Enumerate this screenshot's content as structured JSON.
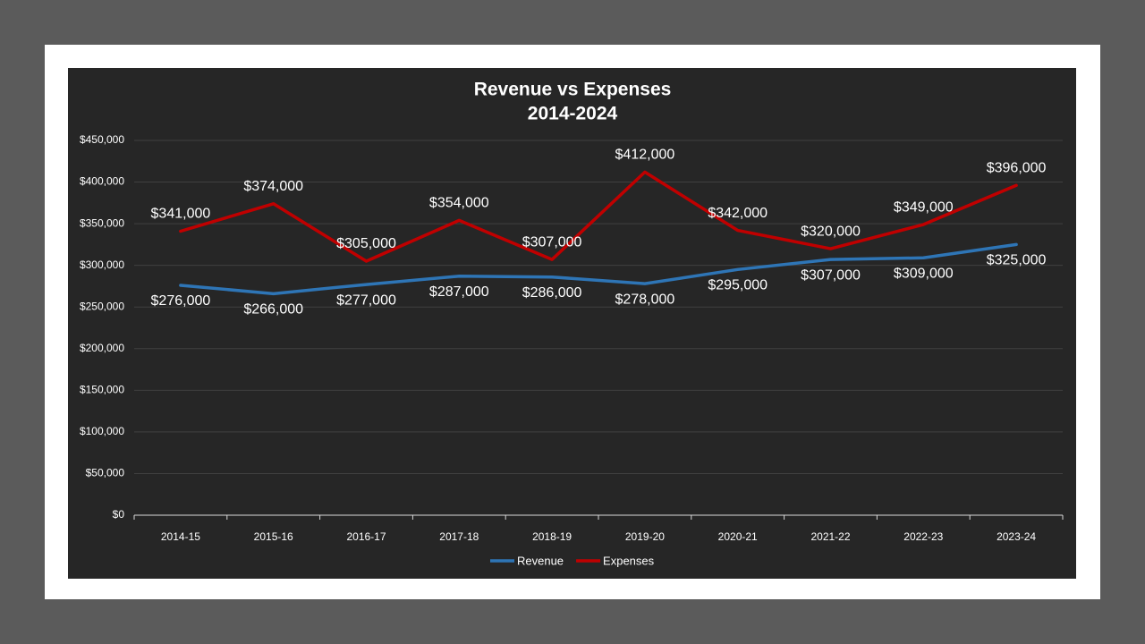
{
  "chart_data": {
    "type": "line",
    "title": "Revenue vs Expenses",
    "subtitle": "2014-2024",
    "categories": [
      "2014-15",
      "2015-16",
      "2016-17",
      "2017-18",
      "2018-19",
      "2019-20",
      "2020-21",
      "2021-22",
      "2022-23",
      "2023-24"
    ],
    "series": [
      {
        "name": "Revenue",
        "color": "#2e75b6",
        "values": [
          276000,
          266000,
          277000,
          287000,
          286000,
          278000,
          295000,
          307000,
          309000,
          325000
        ],
        "value_labels": [
          "$276,000",
          "$266,000",
          "$277,000",
          "$287,000",
          "$286,000",
          "$278,000",
          "$295,000",
          "$307,000",
          "$309,000",
          "$325,000"
        ]
      },
      {
        "name": "Expenses",
        "color": "#c00000",
        "values": [
          341000,
          374000,
          305000,
          354000,
          307000,
          412000,
          342000,
          320000,
          349000,
          396000
        ],
        "value_labels": [
          "$341,000",
          "$374,000",
          "$305,000",
          "$354,000",
          "$307,000",
          "$412,000",
          "$342,000",
          "$320,000",
          "$349,000",
          "$396,000"
        ]
      }
    ],
    "ylim": [
      0,
      450000
    ],
    "yticks": [
      {
        "value": 0,
        "label": "$0"
      },
      {
        "value": 50000,
        "label": "$50,000"
      },
      {
        "value": 100000,
        "label": "$100,000"
      },
      {
        "value": 150000,
        "label": "$150,000"
      },
      {
        "value": 200000,
        "label": "$200,000"
      },
      {
        "value": 250000,
        "label": "$250,000"
      },
      {
        "value": 300000,
        "label": "$300,000"
      },
      {
        "value": 350000,
        "label": "$350,000"
      },
      {
        "value": 400000,
        "label": "$400,000"
      },
      {
        "value": 450000,
        "label": "$450,000"
      }
    ],
    "grid": true,
    "legend": "bottom"
  }
}
